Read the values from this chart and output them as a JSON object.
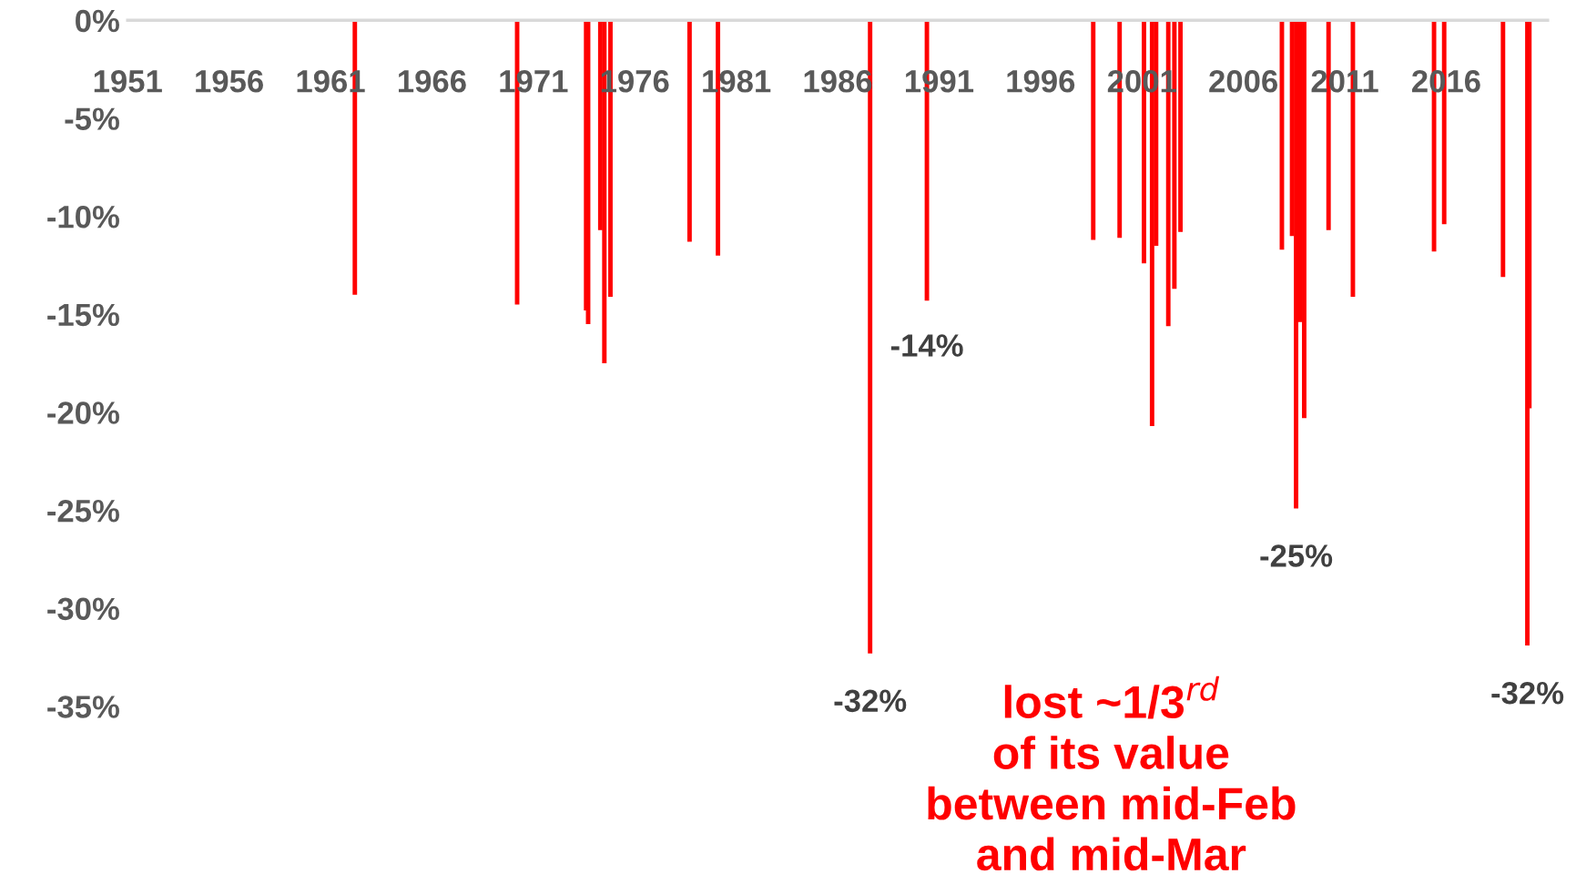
{
  "chart_data": {
    "type": "bar",
    "x": [
      1962.2,
      1970.2,
      1973.6,
      1973.7,
      1974.3,
      1974.5,
      1974.8,
      1978.7,
      1980.1,
      1987.6,
      1990.4,
      1998.6,
      1999.9,
      2001.0,
      2001.1,
      2001.5,
      2001.7,
      2002.3,
      2002.6,
      2002.9,
      2007.9,
      2008.4,
      2008.6,
      2008.8,
      2009.0,
      2010.2,
      2011.4,
      2015.4,
      2015.9,
      2018.8,
      2020.0,
      2020.1
    ],
    "series": [
      {
        "color": "#ff0000",
        "values": [
          -14.0,
          -14.5,
          -14.8,
          -15.5,
          -10.7,
          -17.5,
          -14.1,
          -11.3,
          -12.0,
          -32.3,
          -14.3,
          -11.2,
          -11.1,
          null,
          -12.4,
          -20.7,
          -11.5,
          -15.6,
          -13.7,
          -10.8,
          -11.7,
          -11.0,
          -24.9,
          -15.4,
          -20.3,
          -10.7,
          -14.1,
          -11.8,
          -10.4,
          -13.1,
          -31.9,
          -19.8
        ]
      }
    ],
    "xlim": [
      1951,
      2021
    ],
    "xticks": [
      1951,
      1956,
      1961,
      1966,
      1971,
      1976,
      1981,
      1986,
      1991,
      1996,
      2001,
      2006,
      2011,
      2016
    ],
    "ylim": [
      -35,
      0
    ],
    "yticks": [
      {
        "value": 0,
        "label": "0%"
      },
      {
        "value": -5,
        "label": "-5%"
      },
      {
        "value": -10,
        "label": "-10%"
      },
      {
        "value": -15,
        "label": "-15%"
      },
      {
        "value": -20,
        "label": "-20%"
      },
      {
        "value": -25,
        "label": "-25%"
      },
      {
        "value": -30,
        "label": "-30%"
      },
      {
        "value": -35,
        "label": "-35%"
      }
    ],
    "annotations": [
      {
        "text": "-32%",
        "x": 1987.6,
        "y": -32.3
      },
      {
        "text": "-14%",
        "x": 1990.4,
        "y": -14.3
      },
      {
        "text": "-25%",
        "x": 2008.6,
        "y": -24.9
      },
      {
        "text": "-32%",
        "x": 2020.0,
        "y": -31.9
      },
      "lost ~1/3$^{rd}$\nof its value\nbetween mid-Feb\nand mid-Mar"
    ],
    "grid": false,
    "legend": false
  }
}
